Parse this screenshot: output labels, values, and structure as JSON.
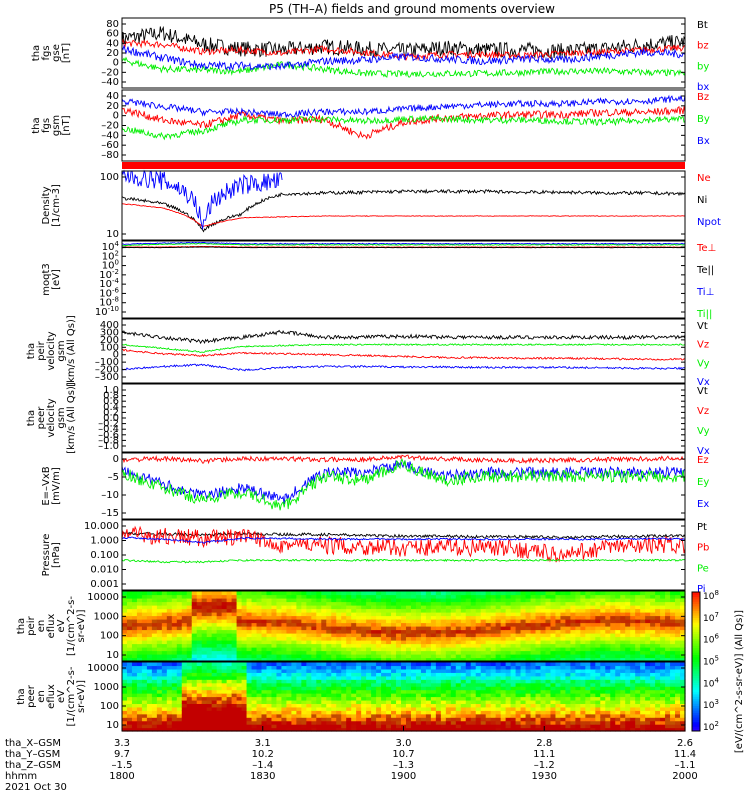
{
  "title": "P5 (TH–A) fields and ground moments overview",
  "colors": {
    "black": "#000000",
    "red": "#ff0000",
    "green": "#00ee00",
    "blue": "#0000ff"
  },
  "colorbar": {
    "label": "[eV/(cm^2-s-sr-eV)] (All Qs)]",
    "ticks": [
      "10^2",
      "10^3",
      "10^4",
      "10^5",
      "10^6",
      "10^7",
      "10^8"
    ]
  },
  "ephemeris": {
    "rows": [
      {
        "label": "tha_X–GSM",
        "values": [
          "3.3",
          "3.1",
          "3.0",
          "2.8",
          "2.6"
        ]
      },
      {
        "label": "tha_Y–GSM",
        "values": [
          "9.7",
          "10.2",
          "10.7",
          "11.1",
          "11.4"
        ]
      },
      {
        "label": "tha_Z–GSM",
        "values": [
          "–1.5",
          "–1.4",
          "–1.3",
          "–1.2",
          "–1.1"
        ]
      },
      {
        "label": "hhmm",
        "values": [
          "1800",
          "1830",
          "1900",
          "1930",
          "2000"
        ]
      }
    ],
    "date": "2021 Oct 30"
  },
  "chart_data": [
    {
      "type": "line",
      "panel": "fgs-gse",
      "ylabel": [
        "tha",
        "fgs",
        "gse",
        "[nT]"
      ],
      "yticks": [
        "80",
        "60",
        "40",
        "20",
        "0",
        "–20",
        "–40"
      ],
      "ylim": [
        -40,
        85
      ],
      "log": false,
      "legend": [
        "Bt",
        "bz",
        "by",
        "bx"
      ],
      "legend_colors": [
        "black",
        "red",
        "green",
        "blue"
      ],
      "series": [
        {
          "color": "black",
          "level": [
            48,
            58,
            38,
            30,
            28,
            34,
            30,
            26,
            32,
            28,
            28,
            26,
            30,
            38,
            42
          ],
          "noise": 14
        },
        {
          "color": "red",
          "level": [
            40,
            38,
            25,
            28,
            22,
            30,
            24,
            16,
            20,
            20,
            18,
            22,
            24,
            28,
            32
          ],
          "noise": 6
        },
        {
          "color": "green",
          "level": [
            10,
            -6,
            -8,
            -10,
            2,
            -6,
            -14,
            -15,
            -14,
            -14,
            -12,
            -10,
            -10,
            -12,
            -14
          ],
          "noise": 6
        },
        {
          "color": "blue",
          "level": [
            30,
            14,
            0,
            0,
            -2,
            8,
            10,
            16,
            12,
            8,
            12,
            10,
            18,
            24,
            20
          ],
          "noise": 7
        }
      ]
    },
    {
      "type": "line",
      "panel": "fgs-gsm",
      "ylabel": [
        "tha",
        "fgs",
        "gsm",
        "[nT]"
      ],
      "yticks": [
        "40",
        "20",
        "0",
        "–20",
        "–40",
        "–60",
        "–80"
      ],
      "ylim": [
        -85,
        45
      ],
      "log": false,
      "legend": [
        "Bz",
        "By",
        "Bx"
      ],
      "legend_colors": [
        "red",
        "green",
        "blue"
      ],
      "series": [
        {
          "color": "red",
          "level": [
            10,
            -10,
            -20,
            0,
            -12,
            -8,
            -40,
            -14,
            -6,
            -2,
            0,
            0,
            4,
            4,
            8
          ],
          "noise": 7
        },
        {
          "color": "green",
          "level": [
            -25,
            -40,
            -30,
            -10,
            -10,
            -8,
            -12,
            -8,
            -8,
            -10,
            -10,
            -12,
            -14,
            -10,
            -8
          ],
          "noise": 6
        },
        {
          "color": "blue",
          "level": [
            25,
            15,
            5,
            5,
            0,
            5,
            5,
            10,
            15,
            18,
            20,
            20,
            24,
            25,
            30
          ],
          "noise": 6
        }
      ]
    },
    {
      "type": "bar",
      "panel": "quality-flag",
      "color": "red"
    },
    {
      "type": "line",
      "panel": "density",
      "ylabel": [
        "Density",
        "[1/cm-3]"
      ],
      "yticks": [
        "100",
        "10"
      ],
      "ylim_log": [
        0.5,
        2.6
      ],
      "log": true,
      "legend": [
        "Ne",
        "Ni",
        "Npot"
      ],
      "legend_colors": [
        "red",
        "black",
        "blue"
      ],
      "series": [
        {
          "color": "black",
          "level": [
            60,
            40,
            6,
            20,
            80,
            85,
            90,
            95,
            95,
            95,
            90,
            90,
            85,
            85,
            80
          ],
          "noise": 0.05
        },
        {
          "color": "red",
          "level": [
            40,
            30,
            8,
            15,
            16,
            17,
            17,
            17,
            17,
            17,
            17,
            17,
            17,
            17,
            17
          ],
          "noise": 0.01
        },
        {
          "color": "blue",
          "level": [
            300,
            200,
            5,
            150,
            200,
            null,
            null,
            null,
            null,
            null,
            null,
            null,
            null,
            null,
            null
          ],
          "noise": 0.3
        }
      ]
    },
    {
      "type": "line",
      "panel": "temperature",
      "ylabel": [
        "moqt3",
        "[eV]"
      ],
      "yticks": [
        "10^4",
        "10^2",
        "10^0",
        "10^-2",
        "10^-4",
        "10^-6",
        "10^-8",
        "10^-10"
      ],
      "ylim_log": [
        -10,
        4
      ],
      "log": true,
      "legend": [
        "Te⊥",
        "Te||",
        "Ti⊥",
        "Ti||"
      ],
      "legend_colors": [
        "red",
        "black",
        "blue",
        "green"
      ],
      "series": [
        {
          "color": "blue",
          "level": [
            3.4,
            3.6,
            3.7,
            3.5,
            3.5,
            3.5,
            3.5,
            3.5,
            3.5,
            3.5,
            3.5,
            3.5,
            3.5,
            3.5,
            3.5
          ],
          "noise": 0.08
        },
        {
          "color": "green",
          "level": [
            3.2,
            3.4,
            3.5,
            3.3,
            3.3,
            3.3,
            3.3,
            3.3,
            3.3,
            3.3,
            3.3,
            3.3,
            3.3,
            3.3,
            3.3
          ],
          "noise": 0.06
        },
        {
          "color": "red",
          "level": [
            2.9,
            2.9,
            3.0,
            2.9,
            2.9,
            2.9,
            2.9,
            2.9,
            2.9,
            2.9,
            2.9,
            2.9,
            2.9,
            2.9,
            2.9
          ],
          "noise": 0.04
        },
        {
          "color": "black",
          "level": [
            2.8,
            2.8,
            2.9,
            2.8,
            2.8,
            2.8,
            2.8,
            2.8,
            2.8,
            2.8,
            2.8,
            2.8,
            2.8,
            2.8,
            2.8
          ],
          "noise": 0.03
        }
      ]
    },
    {
      "type": "line",
      "panel": "peir-velocity",
      "ylabel": [
        "tha",
        "peir",
        "velocity",
        "gsm",
        "[km/s (All Qs)]"
      ],
      "yticks": [
        "400",
        "300",
        "200",
        "100",
        "0",
        "–100",
        "–200",
        "–300"
      ],
      "ylim": [
        -300,
        400
      ],
      "log": false,
      "legend": [
        "Vt",
        "Vz",
        "Vy",
        "Vx"
      ],
      "legend_colors": [
        "black",
        "red",
        "green",
        "blue"
      ],
      "series": [
        {
          "color": "black",
          "level": [
            250,
            200,
            150,
            200,
            260,
            200,
            205,
            210,
            205,
            200,
            200,
            200,
            200,
            200,
            200
          ],
          "noise": 20
        },
        {
          "color": "red",
          "level": [
            60,
            20,
            0,
            30,
            20,
            10,
            0,
            -10,
            -20,
            -25,
            -30,
            -30,
            -35,
            -40,
            -40
          ],
          "noise": 10
        },
        {
          "color": "green",
          "level": [
            120,
            80,
            40,
            100,
            110,
            120,
            120,
            120,
            120,
            120,
            120,
            120,
            120,
            120,
            120
          ],
          "noise": 8
        },
        {
          "color": "blue",
          "level": [
            -150,
            -120,
            -100,
            -160,
            -130,
            -120,
            -120,
            -125,
            -125,
            -130,
            -130,
            -130,
            -135,
            -140,
            -140
          ],
          "noise": 10
        }
      ]
    },
    {
      "type": "line",
      "panel": "peer-velocity",
      "ylabel": [
        "tha",
        "peer",
        "velocity",
        "gsm",
        "[km/s (All Qs)]"
      ],
      "yticks": [
        "1.0",
        "0.8",
        "0.6",
        "0.4",
        "0.2",
        "0.0",
        "–0.2",
        "–0.4",
        "–0.6",
        "–0.8",
        "–1.0"
      ],
      "ylim": [
        -1,
        1
      ],
      "log": false,
      "legend": [
        "Vt",
        "Vz",
        "Vy",
        "Vx"
      ],
      "legend_colors": [
        "black",
        "red",
        "green",
        "blue"
      ],
      "series": []
    },
    {
      "type": "line",
      "panel": "e-field",
      "ylabel": [
        "E=–VxB",
        "[mV/m]"
      ],
      "yticks": [
        "0",
        "–5",
        "–10",
        "–15"
      ],
      "ylim": [
        -15,
        2
      ],
      "log": false,
      "legend": [
        "Ez",
        "Ey",
        "Ex"
      ],
      "legend_colors": [
        "red",
        "green",
        "blue"
      ],
      "series": [
        {
          "color": "red",
          "level": [
            0.3,
            0.5,
            0,
            0.5,
            0.5,
            0.3,
            0.4,
            1,
            0.5,
            0.2,
            0,
            0.2,
            0.3,
            0.5,
            0.7
          ],
          "noise": 0.6
        },
        {
          "color": "blue",
          "level": [
            -2,
            -6,
            -9,
            -7,
            -10,
            -3,
            -3,
            -1,
            -4,
            -3,
            -3,
            -3,
            -3,
            -3,
            -3
          ],
          "noise": 1.4
        },
        {
          "color": "green",
          "level": [
            -3,
            -7,
            -10,
            -8,
            -12,
            -4,
            -5,
            -1,
            -5,
            -4,
            -4,
            -4,
            -4,
            -4,
            -4
          ],
          "noise": 1.6
        }
      ]
    },
    {
      "type": "line",
      "panel": "pressure",
      "ylabel": [
        "Pressure",
        "[nPa]"
      ],
      "yticks": [
        "10.000",
        "1.000",
        "0.100",
        "0.010",
        "0.001"
      ],
      "ylim_log": [
        -3,
        1
      ],
      "log": true,
      "legend": [
        "Pt",
        "Pb",
        "Pe",
        "Pi"
      ],
      "legend_colors": [
        "black",
        "red",
        "green",
        "blue"
      ],
      "series": [
        {
          "color": "black",
          "level": [
            1.7,
            1.6,
            1.4,
            1.7,
            1.5,
            1.5,
            1.3,
            1.2,
            1.2,
            1.1,
            1.1,
            1.0,
            1.1,
            1.2,
            1.3
          ],
          "noise": 0.08
        },
        {
          "color": "red",
          "level": [
            1.4,
            1.2,
            0.9,
            1.0,
            0.4,
            0.35,
            0.3,
            0.25,
            0.3,
            0.25,
            0.2,
            0.08,
            0.25,
            0.35,
            0.4
          ],
          "noise": 0.5
        },
        {
          "color": "blue",
          "level": [
            1.0,
            0.8,
            0.5,
            0.9,
            0.9,
            0.8,
            0.8,
            0.8,
            0.8,
            0.8,
            0.8,
            0.8,
            0.8,
            0.85,
            0.85
          ],
          "noise": 0.05
        },
        {
          "color": "green",
          "level": [
            0.05,
            0.04,
            0.04,
            0.05,
            0.05,
            0.05,
            0.05,
            0.05,
            0.05,
            0.05,
            0.05,
            0.05,
            0.05,
            0.05,
            0.05
          ],
          "noise": 0.05
        }
      ]
    },
    {
      "type": "heatmap",
      "panel": "peir-spectrogram",
      "ylabel": [
        "tha",
        "peir",
        "en",
        "eflux",
        "eV",
        "[1/(cm^2-s-",
        "sr-eV)]"
      ],
      "yticks": [
        "10000",
        "1000",
        "100",
        "10"
      ],
      "ylim_log": [
        0.9,
        4.3
      ],
      "log": true,
      "palette": "rainbow"
    },
    {
      "type": "heatmap",
      "panel": "peer-spectrogram",
      "ylabel": [
        "tha",
        "peer",
        "en",
        "eflux",
        "eV",
        "[1/(cm^2-s-",
        "sr-eV)]"
      ],
      "yticks": [
        "10000",
        "1000",
        "100",
        "10"
      ],
      "ylim_log": [
        0.9,
        4.3
      ],
      "log": true,
      "palette": "rainbow"
    }
  ]
}
